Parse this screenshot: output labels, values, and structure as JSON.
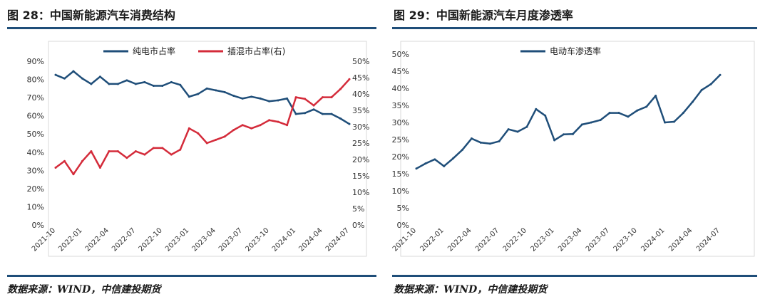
{
  "left_figure": {
    "title": "图 28：中国新能源汽车消费结构",
    "source": "数据来源：WIND，中信建投期货"
  },
  "right_figure": {
    "title": "图 29：中国新能源汽车月度渗透率",
    "source": "数据来源：WIND，中信建投期货"
  },
  "colors": {
    "rule": "#1f4e79",
    "navy": "#1f4e79",
    "red": "#d42b3a",
    "plot_border": "#d9d9d9"
  },
  "chart_data": [
    {
      "type": "line",
      "x": [
        "2021-10",
        "2021-11",
        "2021-12",
        "2022-01",
        "2022-02",
        "2022-03",
        "2022-04",
        "2022-05",
        "2022-06",
        "2022-07",
        "2022-08",
        "2022-09",
        "2022-10",
        "2022-11",
        "2022-12",
        "2023-01",
        "2023-02",
        "2023-03",
        "2023-04",
        "2023-05",
        "2023-06",
        "2023-07",
        "2023-08",
        "2023-09",
        "2023-10",
        "2023-11",
        "2023-12",
        "2024-01",
        "2024-02",
        "2024-03",
        "2024-04",
        "2024-05",
        "2024-06",
        "2024-07"
      ],
      "xticks": [
        "2021-10",
        "2022-01",
        "2022-04",
        "2022-07",
        "2022-10",
        "2023-01",
        "2023-04",
        "2023-07",
        "2023-10",
        "2024-01",
        "2024-04",
        "2024-07"
      ],
      "series": [
        {
          "name": "纯电市占率",
          "axis": "left",
          "color": "#1f4e79",
          "values": [
            82.5,
            80.5,
            84.5,
            80.5,
            77.5,
            81.5,
            77.5,
            77.5,
            79.5,
            77.5,
            78.5,
            76.5,
            76.5,
            78.5,
            77,
            70.5,
            72,
            75,
            74,
            73,
            71,
            69.5,
            70.5,
            69.5,
            68,
            68.5,
            69.5,
            61,
            61.5,
            63.5,
            61,
            61,
            58.5,
            55.5
          ]
        },
        {
          "name": "插混市占率(右)",
          "axis": "right",
          "color": "#d42b3a",
          "values": [
            17.5,
            19.5,
            15.5,
            19.5,
            22.5,
            17.5,
            22.5,
            22.5,
            20.5,
            22.5,
            21.5,
            23.5,
            23.5,
            21.5,
            23,
            29.5,
            28,
            25,
            26,
            27,
            29,
            30.5,
            29.5,
            30.5,
            32,
            31.5,
            30.5,
            39,
            38.5,
            36.5,
            39,
            39,
            41.5,
            44.5
          ]
        }
      ],
      "y_left": {
        "ticks": [
          "0%",
          "10%",
          "20%",
          "30%",
          "40%",
          "50%",
          "60%",
          "70%",
          "80%",
          "90%"
        ],
        "ylim": [
          0,
          90
        ]
      },
      "y_right": {
        "ticks": [
          "0%",
          "5%",
          "10%",
          "15%",
          "20%",
          "25%",
          "30%",
          "35%",
          "40%",
          "45%",
          "50%"
        ],
        "ylim": [
          0,
          50
        ]
      },
      "legend_position": "top-center",
      "grid": false
    },
    {
      "type": "line",
      "x": [
        "2021-10",
        "2021-11",
        "2021-12",
        "2022-01",
        "2022-02",
        "2022-03",
        "2022-04",
        "2022-05",
        "2022-06",
        "2022-07",
        "2022-08",
        "2022-09",
        "2022-10",
        "2022-11",
        "2022-12",
        "2023-01",
        "2023-02",
        "2023-03",
        "2023-04",
        "2023-05",
        "2023-06",
        "2023-07",
        "2023-08",
        "2023-09",
        "2023-10",
        "2023-11",
        "2023-12",
        "2024-01",
        "2024-02",
        "2024-03",
        "2024-04",
        "2024-05",
        "2024-06",
        "2024-07"
      ],
      "xticks": [
        "2021-10",
        "2022-01",
        "2022-04",
        "2022-07",
        "2022-10",
        "2023-01",
        "2023-04",
        "2023-07",
        "2023-10",
        "2024-01",
        "2024-04",
        "2024-07"
      ],
      "series": [
        {
          "name": "电动车渗透率",
          "axis": "left",
          "color": "#1f4e79",
          "values": [
            16.5,
            18,
            19.2,
            17.2,
            19.5,
            22,
            25.3,
            24.1,
            23.8,
            24.5,
            28,
            27.3,
            28.7,
            33.9,
            32,
            24.8,
            26.5,
            26.6,
            29.4,
            30,
            30.7,
            32.8,
            32.8,
            31.7,
            33.5,
            34.6,
            37.8,
            30,
            30.2,
            32.8,
            36,
            39.5,
            41.2,
            43.9
          ]
        }
      ],
      "y_left": {
        "ticks": [
          "0%",
          "5%",
          "10%",
          "15%",
          "20%",
          "25%",
          "30%",
          "35%",
          "40%",
          "45%",
          "50%"
        ],
        "ylim": [
          0,
          50
        ]
      },
      "legend_position": "top-center",
      "grid": false
    }
  ]
}
